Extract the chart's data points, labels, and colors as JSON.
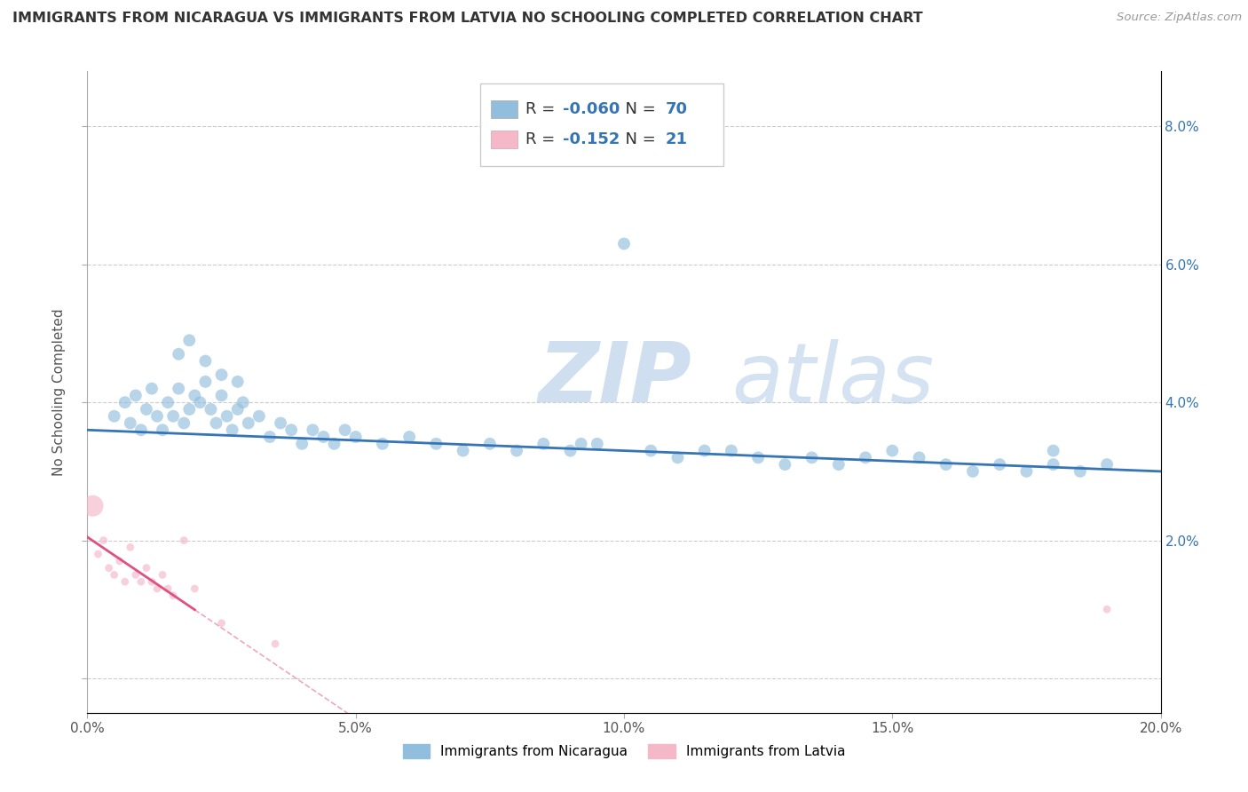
{
  "title": "IMMIGRANTS FROM NICARAGUA VS IMMIGRANTS FROM LATVIA NO SCHOOLING COMPLETED CORRELATION CHART",
  "source": "Source: ZipAtlas.com",
  "ylabel": "No Schooling Completed",
  "xlim": [
    0.0,
    0.2
  ],
  "ylim": [
    -0.005,
    0.088
  ],
  "xticks": [
    0.0,
    0.05,
    0.1,
    0.15,
    0.2
  ],
  "yticks": [
    0.0,
    0.02,
    0.04,
    0.06,
    0.08
  ],
  "xtick_labels": [
    "0.0%",
    "5.0%",
    "10.0%",
    "15.0%",
    "20.0%"
  ],
  "ytick_labels_right": [
    "",
    "2.0%",
    "4.0%",
    "6.0%",
    "8.0%"
  ],
  "blue_R": -0.06,
  "blue_N": 70,
  "pink_R": -0.152,
  "pink_N": 21,
  "blue_color": "#92bede",
  "pink_color": "#f5b8c8",
  "blue_line_color": "#3575b5",
  "pink_line_color": "#e05080",
  "watermark_zip": "ZIP",
  "watermark_atlas": "atlas",
  "legend_blue_label": "Immigrants from Nicaragua",
  "legend_pink_label": "Immigrants from Latvia",
  "blue_x": [
    0.005,
    0.007,
    0.008,
    0.009,
    0.01,
    0.011,
    0.012,
    0.013,
    0.014,
    0.015,
    0.016,
    0.017,
    0.018,
    0.019,
    0.02,
    0.021,
    0.022,
    0.023,
    0.024,
    0.025,
    0.026,
    0.027,
    0.028,
    0.029,
    0.03,
    0.032,
    0.034,
    0.036,
    0.038,
    0.04,
    0.042,
    0.044,
    0.046,
    0.048,
    0.05,
    0.055,
    0.06,
    0.065,
    0.07,
    0.075,
    0.08,
    0.085,
    0.09,
    0.095,
    0.1,
    0.105,
    0.11,
    0.115,
    0.12,
    0.125,
    0.13,
    0.135,
    0.14,
    0.145,
    0.15,
    0.155,
    0.16,
    0.165,
    0.17,
    0.175,
    0.18,
    0.185,
    0.19,
    0.017,
    0.019,
    0.022,
    0.025,
    0.028,
    0.092,
    0.18
  ],
  "blue_y": [
    0.038,
    0.04,
    0.037,
    0.041,
    0.036,
    0.039,
    0.042,
    0.038,
    0.036,
    0.04,
    0.038,
    0.042,
    0.037,
    0.039,
    0.041,
    0.04,
    0.043,
    0.039,
    0.037,
    0.041,
    0.038,
    0.036,
    0.039,
    0.04,
    0.037,
    0.038,
    0.035,
    0.037,
    0.036,
    0.034,
    0.036,
    0.035,
    0.034,
    0.036,
    0.035,
    0.034,
    0.035,
    0.034,
    0.033,
    0.034,
    0.033,
    0.034,
    0.033,
    0.034,
    0.063,
    0.033,
    0.032,
    0.033,
    0.033,
    0.032,
    0.031,
    0.032,
    0.031,
    0.032,
    0.033,
    0.032,
    0.031,
    0.03,
    0.031,
    0.03,
    0.031,
    0.03,
    0.031,
    0.047,
    0.049,
    0.046,
    0.044,
    0.043,
    0.034,
    0.033
  ],
  "pink_x": [
    0.001,
    0.002,
    0.003,
    0.004,
    0.005,
    0.006,
    0.007,
    0.008,
    0.009,
    0.01,
    0.011,
    0.012,
    0.013,
    0.014,
    0.015,
    0.016,
    0.018,
    0.02,
    0.025,
    0.035,
    0.19
  ],
  "pink_y": [
    0.025,
    0.018,
    0.02,
    0.016,
    0.015,
    0.017,
    0.014,
    0.019,
    0.015,
    0.014,
    0.016,
    0.014,
    0.013,
    0.015,
    0.013,
    0.012,
    0.02,
    0.013,
    0.008,
    0.005,
    0.01
  ],
  "pink_sizes": [
    300,
    40,
    40,
    40,
    40,
    40,
    40,
    40,
    40,
    40,
    40,
    40,
    40,
    40,
    40,
    40,
    40,
    40,
    40,
    40,
    40
  ]
}
